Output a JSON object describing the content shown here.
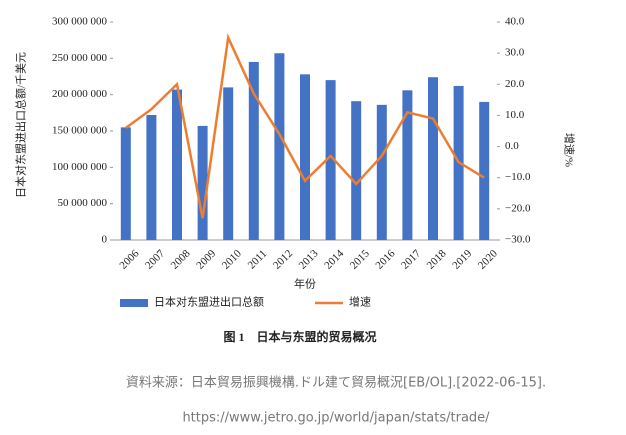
{
  "chart_data": {
    "type": "bar_line",
    "categories": [
      "2006",
      "2007",
      "2008",
      "2009",
      "2010",
      "2011",
      "2012",
      "2013",
      "2014",
      "2015",
      "2016",
      "2017",
      "2018",
      "2019",
      "2020"
    ],
    "series": [
      {
        "name": "日本对东盟进出口总额",
        "color": "#4472c4",
        "type": "bar",
        "values": [
          155000000,
          172000000,
          207000000,
          157000000,
          210000000,
          245000000,
          257000000,
          228000000,
          220000000,
          191000000,
          186000000,
          206000000,
          224000000,
          212000000,
          190000000
        ]
      },
      {
        "name": "增速",
        "color": "#ed7d31",
        "type": "line",
        "axis": "y2",
        "values": [
          6,
          12,
          20,
          -23,
          35,
          17,
          4,
          -11,
          -3,
          -12,
          -3,
          11,
          9,
          -5,
          -10
        ]
      }
    ],
    "ylabel": "日本对东盟进出口总额/千美元",
    "y2label": "增速/%",
    "xlabel": "年份",
    "ylim": [
      0,
      300000000
    ],
    "yticks": [
      0,
      {
        "value": 50000000,
        "label": "50 000 000"
      },
      {
        "value": 100000000,
        "label": "100 000 000"
      },
      {
        "value": 150000000,
        "label": "150 000 000"
      },
      {
        "value": 200000000,
        "label": "200 000 000"
      },
      {
        "value": 250000000,
        "label": "250 000 000"
      },
      {
        "value": 300000000,
        "label": "300 000 000"
      }
    ],
    "y2lim": [
      -30,
      40
    ],
    "y2ticks": [
      {
        "value": -30,
        "label": "−30.0"
      },
      {
        "value": -20,
        "label": "−20.0"
      },
      {
        "value": -10,
        "label": "−10.0"
      },
      {
        "value": 0,
        "label": "0.0"
      },
      {
        "value": 10,
        "label": "10.0"
      },
      {
        "value": 20,
        "label": "20.0"
      },
      {
        "value": 30,
        "label": "30.0"
      },
      {
        "value": 40,
        "label": "40.0"
      }
    ],
    "legend": "bottom",
    "caption": "图 1　日本与东盟的贸易概况"
  },
  "source": [
    "資料来源：日本貿易振興機構.ドル建て貿易概況[EB/OL].[2022-06-15].",
    "https://www.jetro.go.jp/world/japan/stats/trade/"
  ]
}
